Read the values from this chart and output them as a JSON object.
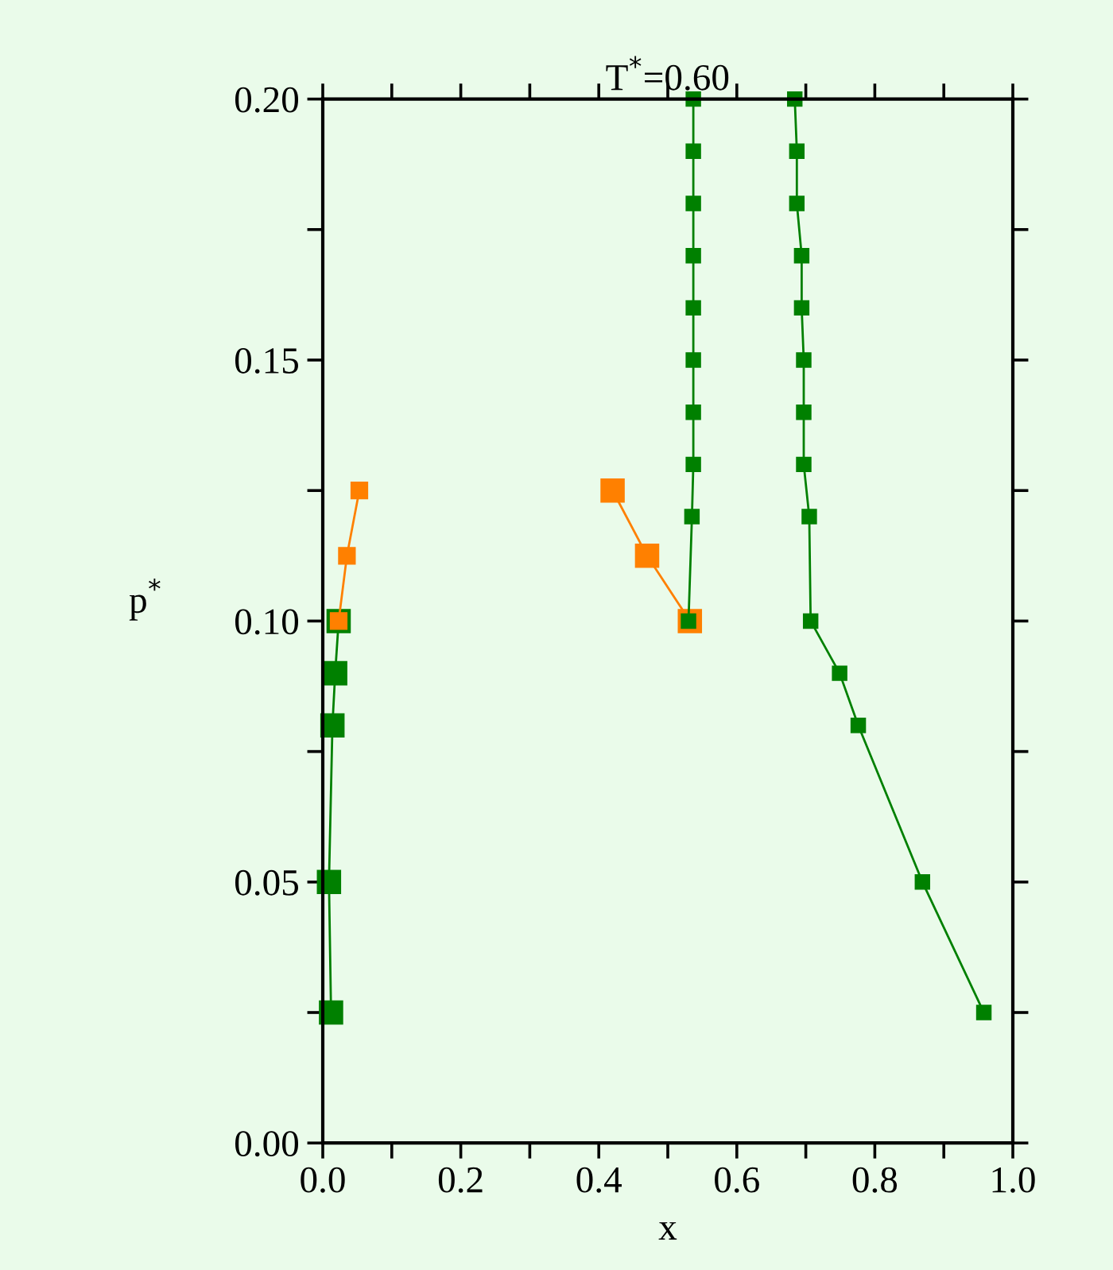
{
  "chart_data": {
    "type": "line",
    "title": "T$^{*}$=0.60",
    "xlabel": "x",
    "ylabel": "p$^{*}$",
    "marker": "square",
    "line_style": "solid",
    "grid": false,
    "legend": false,
    "xlim": [
      0.0,
      1.0
    ],
    "ylim": [
      0.0,
      0.2
    ],
    "xticks": [
      {
        "value": 0.0,
        "label": "0.0"
      },
      {
        "value": 0.1,
        "label": null
      },
      {
        "value": 0.2,
        "label": "0.2"
      },
      {
        "value": 0.3,
        "label": null
      },
      {
        "value": 0.4,
        "label": "0.4"
      },
      {
        "value": 0.5,
        "label": null
      },
      {
        "value": 0.6,
        "label": "0.6"
      },
      {
        "value": 0.7,
        "label": null
      },
      {
        "value": 0.8,
        "label": "0.8"
      },
      {
        "value": 0.9,
        "label": null
      },
      {
        "value": 1.0,
        "label": "1.0"
      }
    ],
    "yticks": [
      {
        "value": 0.0,
        "label": "0.00"
      },
      {
        "value": 0.025,
        "label": null
      },
      {
        "value": 0.05,
        "label": "0.05"
      },
      {
        "value": 0.075,
        "label": null
      },
      {
        "value": 0.1,
        "label": "0.10"
      },
      {
        "value": 0.125,
        "label": null
      },
      {
        "value": 0.15,
        "label": "0.15"
      },
      {
        "value": 0.175,
        "label": null
      },
      {
        "value": 0.2,
        "label": "0.20"
      }
    ],
    "series": [
      {
        "color": "#008000",
        "x": [
          0.012,
          0.009,
          0.014,
          0.018,
          0.023
        ],
        "values": [
          0.025,
          0.05,
          0.08,
          0.09,
          0.1
        ]
      },
      {
        "color": "#ff8000",
        "x": [
          0.023,
          0.035,
          0.053
        ],
        "values": [
          0.1,
          0.1125,
          0.125
        ]
      },
      {
        "color": "#ff8000",
        "x": [
          0.42,
          0.47,
          0.532
        ],
        "values": [
          0.125,
          0.1125,
          0.1
        ]
      },
      {
        "color": "#008000",
        "x": [
          0.53,
          0.535,
          0.537,
          0.537,
          0.537,
          0.537,
          0.537,
          0.537,
          0.537,
          0.537
        ],
        "values": [
          0.1,
          0.12,
          0.13,
          0.14,
          0.15,
          0.16,
          0.17,
          0.18,
          0.19,
          0.2
        ]
      },
      {
        "color": "#008000",
        "x": [
          0.958,
          0.869,
          0.776,
          0.749,
          0.707,
          0.705,
          0.697,
          0.697,
          0.697,
          0.694,
          0.694,
          0.687,
          0.687,
          0.684
        ],
        "values": [
          0.025,
          0.05,
          0.08,
          0.09,
          0.1,
          0.12,
          0.13,
          0.14,
          0.15,
          0.16,
          0.17,
          0.18,
          0.19,
          0.2
        ]
      }
    ]
  }
}
